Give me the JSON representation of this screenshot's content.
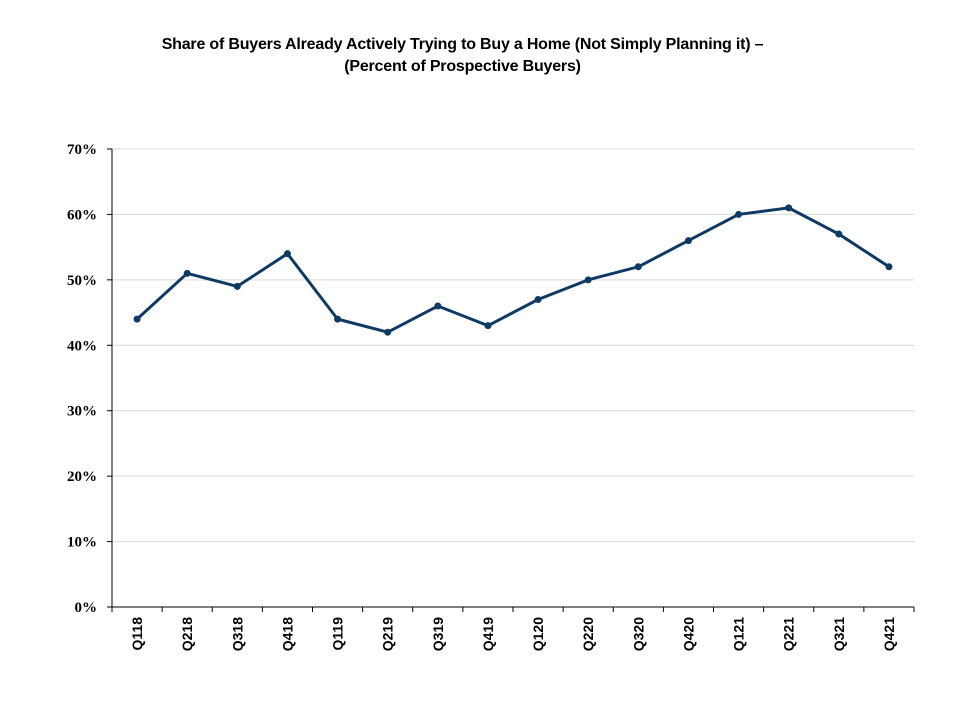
{
  "chart_data": {
    "type": "line",
    "title_lines": [
      "Share of Buyers Already Actively Trying to Buy a Home (Not Simply Planning it) –",
      "(Percent of Prospective Buyers)"
    ],
    "categories": [
      "Q118",
      "Q218",
      "Q318",
      "Q418",
      "Q119",
      "Q219",
      "Q319",
      "Q419",
      "Q120",
      "Q220",
      "Q320",
      "Q420",
      "Q121",
      "Q221",
      "Q321",
      "Q421"
    ],
    "series": [
      {
        "values": [
          44,
          51,
          49,
          54,
          44,
          42,
          46,
          43,
          47,
          50,
          52,
          56,
          60,
          61,
          57,
          52
        ]
      }
    ],
    "y_ticks": [
      "0%",
      "10%",
      "20%",
      "30%",
      "40%",
      "50%",
      "60%",
      "70%"
    ],
    "ylim": [
      0,
      70
    ],
    "grid": true,
    "legend": "none",
    "line_color": "#0e3a63"
  }
}
